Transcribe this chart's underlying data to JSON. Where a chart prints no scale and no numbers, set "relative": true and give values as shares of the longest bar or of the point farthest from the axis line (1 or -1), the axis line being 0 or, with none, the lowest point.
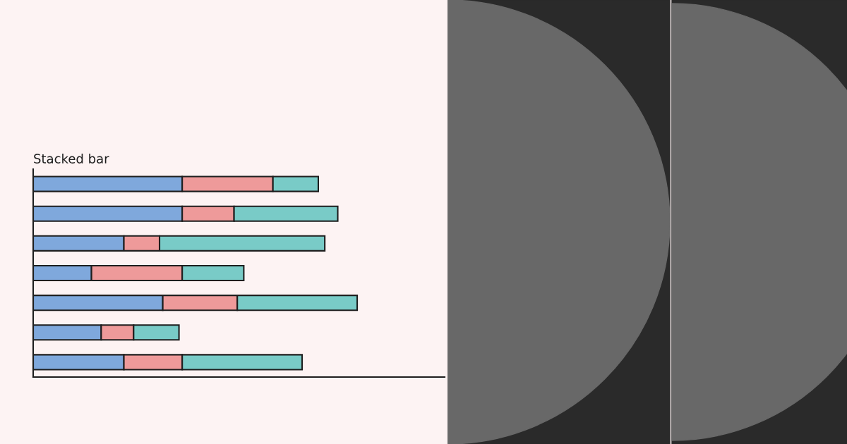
{
  "chart_data": {
    "type": "bar",
    "title": "Stacked bar",
    "orientation": "horizontal",
    "stacked": true,
    "relative": true,
    "categories": [
      null,
      null,
      null,
      null,
      null,
      null,
      null
    ],
    "series": [
      {
        "color": "#7fa8dc",
        "values": [
          0.46,
          0.46,
          0.28,
          0.18,
          0.4,
          0.21,
          0.28
        ]
      },
      {
        "color": "#ee9a9a",
        "values": [
          0.28,
          0.16,
          0.11,
          0.28,
          0.23,
          0.1,
          0.18
        ]
      },
      {
        "color": "#79cbc7",
        "values": [
          0.14,
          0.32,
          0.51,
          0.19,
          0.37,
          0.14,
          0.37
        ]
      }
    ]
  }
}
